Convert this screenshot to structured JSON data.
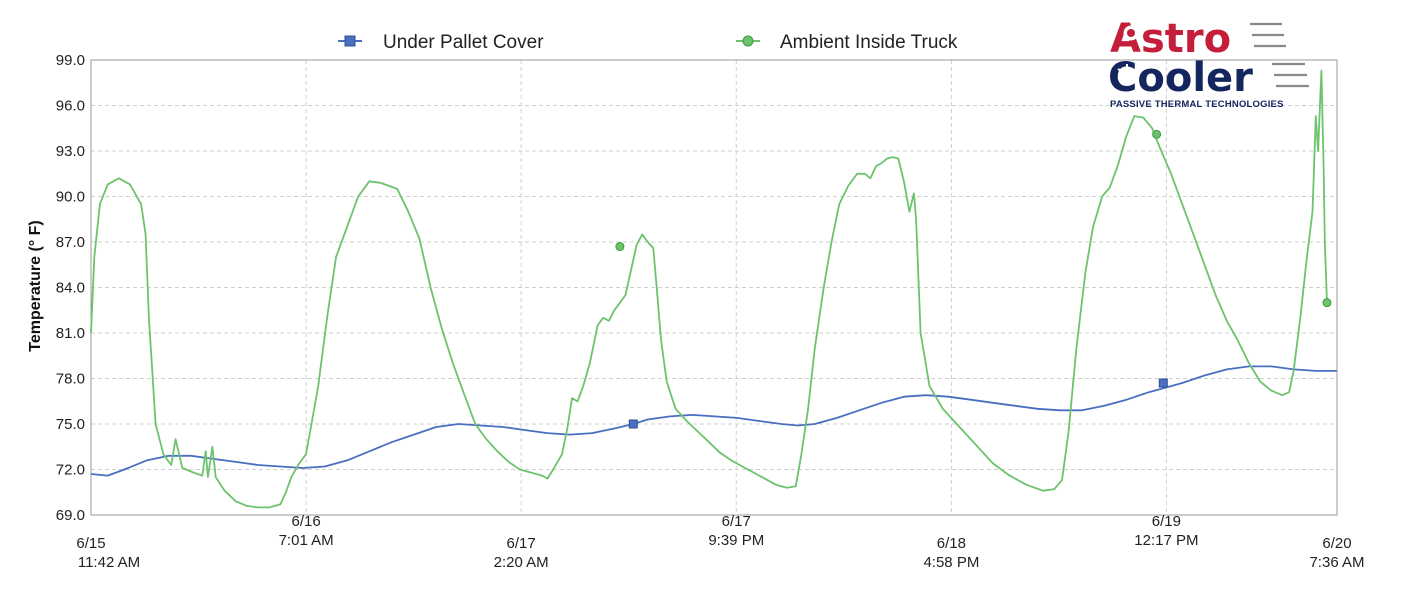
{
  "logo": {
    "line1": "Astro",
    "line2": "Cooler",
    "tagline": "PASSIVE THERMAL TECHNOLOGIES",
    "colors": {
      "red": "#c41e3a",
      "navy": "#14265e",
      "gray": "#8a8a8a"
    }
  },
  "chart_data": {
    "type": "line",
    "title": "",
    "xlabel": "",
    "ylabel": "Temperature (° F)",
    "ylim": [
      69,
      99
    ],
    "yticks": [
      "69.0",
      "72.0",
      "75.0",
      "78.0",
      "81.0",
      "84.0",
      "87.0",
      "90.0",
      "93.0",
      "96.0",
      "99.0"
    ],
    "xlim": [
      0,
      111.9
    ],
    "x_unit": "hours since 6/15 11:42 AM",
    "xticks": [
      {
        "x": 0,
        "date": "6/15",
        "time": "11:42 AM"
      },
      {
        "x": 19.32,
        "date": "6/16",
        "time": "7:01 AM"
      },
      {
        "x": 38.63,
        "date": "6/17",
        "time": "2:20 AM"
      },
      {
        "x": 57.95,
        "date": "6/17",
        "time": "9:39 PM"
      },
      {
        "x": 77.27,
        "date": "6/18",
        "time": "4:58 PM"
      },
      {
        "x": 96.58,
        "date": "6/19",
        "time": "12:17 PM"
      },
      {
        "x": 111.9,
        "date": "6/20",
        "time": "7:36 AM"
      }
    ],
    "grid": true,
    "legend_position": "top",
    "series": [
      {
        "name": "Under Pallet Cover",
        "color": "#4a6fc0",
        "marker": "square",
        "points": [
          [
            0,
            71.7
          ],
          [
            1.5,
            71.6
          ],
          [
            3,
            72.0
          ],
          [
            5,
            72.6
          ],
          [
            7,
            72.9
          ],
          [
            9,
            72.9
          ],
          [
            11,
            72.7
          ],
          [
            13,
            72.5
          ],
          [
            15,
            72.3
          ],
          [
            17,
            72.2
          ],
          [
            19,
            72.1
          ],
          [
            21,
            72.2
          ],
          [
            23,
            72.6
          ],
          [
            25,
            73.2
          ],
          [
            27,
            73.8
          ],
          [
            29,
            74.3
          ],
          [
            31,
            74.8
          ],
          [
            33,
            75.0
          ],
          [
            35,
            74.9
          ],
          [
            37,
            74.8
          ],
          [
            39,
            74.6
          ],
          [
            41,
            74.4
          ],
          [
            43,
            74.3
          ],
          [
            45,
            74.4
          ],
          [
            47,
            74.7
          ],
          [
            48.7,
            75.0
          ],
          [
            50,
            75.3
          ],
          [
            52,
            75.5
          ],
          [
            54,
            75.6
          ],
          [
            56,
            75.5
          ],
          [
            58,
            75.4
          ],
          [
            60,
            75.2
          ],
          [
            62,
            75.0
          ],
          [
            63.5,
            74.9
          ],
          [
            65,
            75.0
          ],
          [
            67,
            75.4
          ],
          [
            69,
            75.9
          ],
          [
            71,
            76.4
          ],
          [
            73,
            76.8
          ],
          [
            75,
            76.9
          ],
          [
            77,
            76.8
          ],
          [
            79,
            76.6
          ],
          [
            81,
            76.4
          ],
          [
            83,
            76.2
          ],
          [
            85,
            76.0
          ],
          [
            87,
            75.9
          ],
          [
            89,
            75.9
          ],
          [
            91,
            76.2
          ],
          [
            93,
            76.6
          ],
          [
            95,
            77.1
          ],
          [
            97,
            77.5
          ],
          [
            98,
            77.7
          ],
          [
            100,
            78.2
          ],
          [
            102,
            78.6
          ],
          [
            104,
            78.8
          ],
          [
            106,
            78.8
          ],
          [
            108,
            78.6
          ],
          [
            110,
            78.5
          ],
          [
            111.9,
            78.5
          ]
        ],
        "marked_points": [
          [
            48.7,
            75.0
          ],
          [
            96.3,
            77.7
          ]
        ]
      },
      {
        "name": "Ambient Inside Truck",
        "color": "#6cc36c",
        "marker": "circle",
        "points": [
          [
            0,
            81.0
          ],
          [
            0.3,
            86.0
          ],
          [
            0.8,
            89.5
          ],
          [
            1.5,
            90.8
          ],
          [
            2.5,
            91.2
          ],
          [
            3.5,
            90.8
          ],
          [
            4.5,
            89.5
          ],
          [
            4.9,
            87.5
          ],
          [
            5.2,
            82.0
          ],
          [
            5.8,
            75.0
          ],
          [
            6.5,
            73.0
          ],
          [
            7.2,
            72.3
          ],
          [
            7.6,
            74.0
          ],
          [
            8.2,
            72.1
          ],
          [
            9.2,
            71.8
          ],
          [
            10,
            71.6
          ],
          [
            10.3,
            73.2
          ],
          [
            10.5,
            71.5
          ],
          [
            10.9,
            73.5
          ],
          [
            11.2,
            71.5
          ],
          [
            12,
            70.6
          ],
          [
            13,
            69.9
          ],
          [
            14,
            69.6
          ],
          [
            15,
            69.5
          ],
          [
            16,
            69.5
          ],
          [
            17,
            69.7
          ],
          [
            17.5,
            70.5
          ],
          [
            18,
            71.5
          ],
          [
            18.6,
            72.3
          ],
          [
            19.3,
            73.0
          ],
          [
            19.8,
            75.0
          ],
          [
            20.4,
            77.5
          ],
          [
            21.2,
            82.0
          ],
          [
            22,
            86.0
          ],
          [
            23,
            88.0
          ],
          [
            24,
            90.0
          ],
          [
            25,
            91.0
          ],
          [
            26,
            90.9
          ],
          [
            27.5,
            90.5
          ],
          [
            28.5,
            89.0
          ],
          [
            29.5,
            87.2
          ],
          [
            30.5,
            84.0
          ],
          [
            31.5,
            81.3
          ],
          [
            32.5,
            79.0
          ],
          [
            33.5,
            77.0
          ],
          [
            34.5,
            75.0
          ],
          [
            35.5,
            74.0
          ],
          [
            36.5,
            73.2
          ],
          [
            37.5,
            72.5
          ],
          [
            38.5,
            72.0
          ],
          [
            39.5,
            71.8
          ],
          [
            40.5,
            71.6
          ],
          [
            41,
            71.4
          ],
          [
            41.5,
            72.0
          ],
          [
            42.3,
            73.0
          ],
          [
            42.8,
            74.8
          ],
          [
            43.2,
            76.7
          ],
          [
            43.7,
            76.5
          ],
          [
            44.2,
            77.5
          ],
          [
            44.8,
            79.0
          ],
          [
            45.5,
            81.5
          ],
          [
            46,
            82.0
          ],
          [
            46.5,
            81.8
          ],
          [
            47,
            82.5
          ],
          [
            47.5,
            83.0
          ],
          [
            48,
            83.5
          ],
          [
            48.6,
            85.5
          ],
          [
            49,
            86.8
          ],
          [
            49.5,
            87.5
          ],
          [
            50,
            87.0
          ],
          [
            50.5,
            86.6
          ],
          [
            50.8,
            84.0
          ],
          [
            51.2,
            80.5
          ],
          [
            51.7,
            77.8
          ],
          [
            52.5,
            76.0
          ],
          [
            53.5,
            75.2
          ],
          [
            54.5,
            74.5
          ],
          [
            55.5,
            73.8
          ],
          [
            56.5,
            73.1
          ],
          [
            57.5,
            72.6
          ],
          [
            58.5,
            72.2
          ],
          [
            59.5,
            71.8
          ],
          [
            60.5,
            71.4
          ],
          [
            61.5,
            71.0
          ],
          [
            62.5,
            70.8
          ],
          [
            63.3,
            70.9
          ],
          [
            63.8,
            73.0
          ],
          [
            64.4,
            76.0
          ],
          [
            65,
            80.0
          ],
          [
            65.8,
            84.0
          ],
          [
            66.5,
            87.0
          ],
          [
            67.2,
            89.5
          ],
          [
            68,
            90.7
          ],
          [
            68.8,
            91.5
          ],
          [
            69.5,
            91.5
          ],
          [
            70,
            91.2
          ],
          [
            70.5,
            92.0
          ],
          [
            71,
            92.2
          ],
          [
            71.5,
            92.5
          ],
          [
            72,
            92.6
          ],
          [
            72.5,
            92.5
          ],
          [
            73,
            91.0
          ],
          [
            73.5,
            89.0
          ],
          [
            73.9,
            90.2
          ],
          [
            74.1,
            88.5
          ],
          [
            74.5,
            81.0
          ],
          [
            75.3,
            77.5
          ],
          [
            76.5,
            76.0
          ],
          [
            78,
            74.8
          ],
          [
            79.5,
            73.6
          ],
          [
            81,
            72.4
          ],
          [
            82.5,
            71.6
          ],
          [
            84,
            71.0
          ],
          [
            85.5,
            70.6
          ],
          [
            86.5,
            70.7
          ],
          [
            87.2,
            71.3
          ],
          [
            87.8,
            74.5
          ],
          [
            88.5,
            80.0
          ],
          [
            89.3,
            85.0
          ],
          [
            90,
            88.0
          ],
          [
            90.8,
            90.0
          ],
          [
            91.5,
            90.6
          ],
          [
            92.2,
            92.0
          ],
          [
            93,
            94.0
          ],
          [
            93.7,
            95.3
          ],
          [
            94.5,
            95.2
          ],
          [
            95.3,
            94.5
          ],
          [
            96,
            93.2
          ],
          [
            97,
            91.5
          ],
          [
            98,
            89.5
          ],
          [
            99,
            87.5
          ],
          [
            100,
            85.5
          ],
          [
            101,
            83.5
          ],
          [
            102,
            81.8
          ],
          [
            103,
            80.5
          ],
          [
            104,
            79.0
          ],
          [
            105,
            77.8
          ],
          [
            106,
            77.2
          ],
          [
            107,
            76.9
          ],
          [
            107.6,
            77.1
          ],
          [
            108,
            78.5
          ],
          [
            108.6,
            82.0
          ],
          [
            109.2,
            86.0
          ],
          [
            109.7,
            89.0
          ],
          [
            110,
            95.3
          ],
          [
            110.2,
            93.0
          ],
          [
            110.5,
            98.3
          ],
          [
            110.7,
            92.0
          ],
          [
            110.8,
            87.0
          ],
          [
            111.0,
            83.0
          ]
        ],
        "marked_points": [
          [
            47.5,
            86.7
          ],
          [
            95.7,
            94.1
          ],
          [
            111.0,
            83.0
          ]
        ]
      }
    ]
  }
}
